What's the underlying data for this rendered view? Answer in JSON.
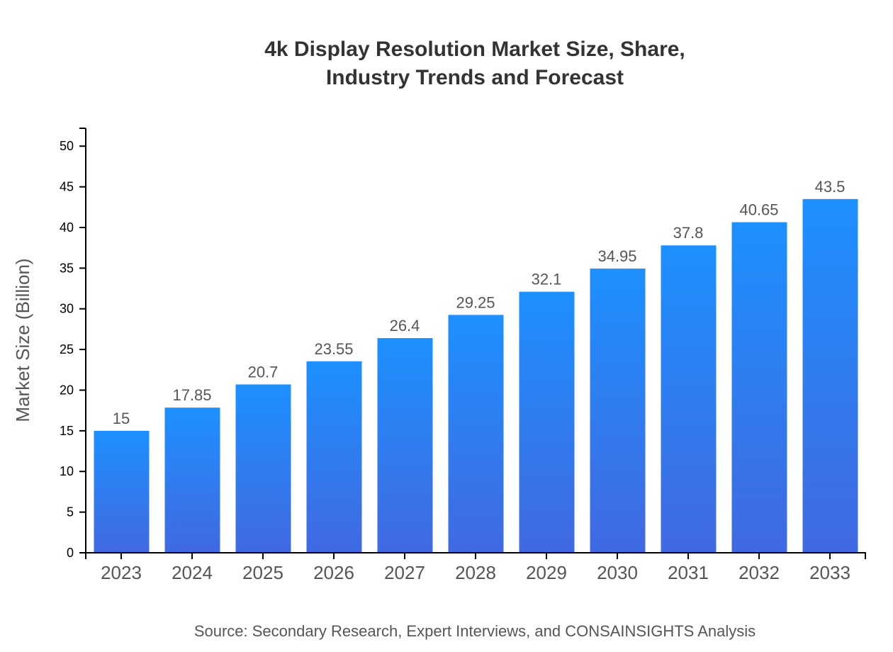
{
  "chart_data": {
    "type": "bar",
    "title_lines": [
      "4k Display Resolution Market Size, Share,",
      "Industry Trends and Forecast"
    ],
    "xlabel": "",
    "ylabel": "Market Size (Billion)",
    "categories": [
      "2023",
      "2024",
      "2025",
      "2026",
      "2027",
      "2028",
      "2029",
      "2030",
      "2031",
      "2032",
      "2033"
    ],
    "values": [
      15,
      17.85,
      20.7,
      23.55,
      26.4,
      29.25,
      32.1,
      34.95,
      37.8,
      40.65,
      43.5
    ],
    "data_labels": [
      "15",
      "17.85",
      "20.7",
      "23.55",
      "26.4",
      "29.25",
      "32.1",
      "34.95",
      "37.8",
      "40.65",
      "43.5"
    ],
    "ylim": [
      0,
      52.2
    ],
    "yticks": [
      0,
      5,
      10,
      15,
      20,
      25,
      30,
      35,
      40,
      45,
      50
    ],
    "grid": false,
    "legend": "none",
    "colors": {
      "bar_top": "#1E90FF",
      "bar_bottom": "#4169E1",
      "label": "#555555",
      "axis": "#000000"
    },
    "source": "Source: Secondary Research, Expert Interviews, and CONSAINSIGHTS Analysis"
  }
}
